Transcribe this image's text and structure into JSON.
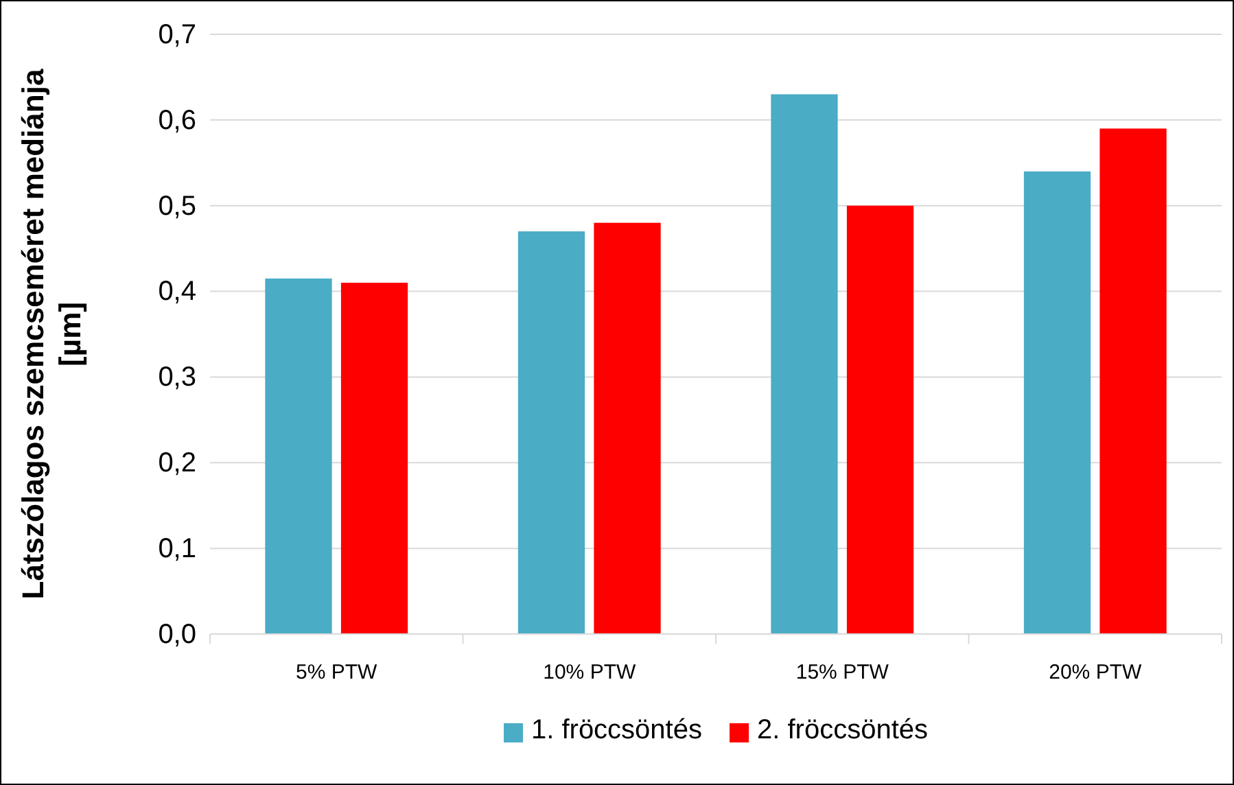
{
  "chart_data": {
    "type": "bar",
    "ylabel": "Látszólagos szemcseméret mediánja [µm]",
    "categories": [
      "5% PTW",
      "10% PTW",
      "15% PTW",
      "20% PTW"
    ],
    "series": [
      {
        "name": "1. fröccsöntés",
        "color": "#4bacc6",
        "values": [
          0.415,
          0.47,
          0.63,
          0.54
        ]
      },
      {
        "name": "2. fröccsöntés",
        "color": "#ff0000",
        "values": [
          0.41,
          0.48,
          0.5,
          0.59
        ]
      }
    ],
    "ylim": [
      0,
      0.7
    ],
    "yticks": [
      {
        "value": 0,
        "label": "0,0"
      },
      {
        "value": 0.1,
        "label": "0,1"
      },
      {
        "value": 0.2,
        "label": "0,2"
      },
      {
        "value": 0.3,
        "label": "0,3"
      },
      {
        "value": 0.4,
        "label": "0,4"
      },
      {
        "value": 0.5,
        "label": "0,5"
      },
      {
        "value": 0.6,
        "label": "0,6"
      },
      {
        "value": 0.7,
        "label": "0,7"
      }
    ],
    "grid": "y",
    "legend": "bottom"
  }
}
